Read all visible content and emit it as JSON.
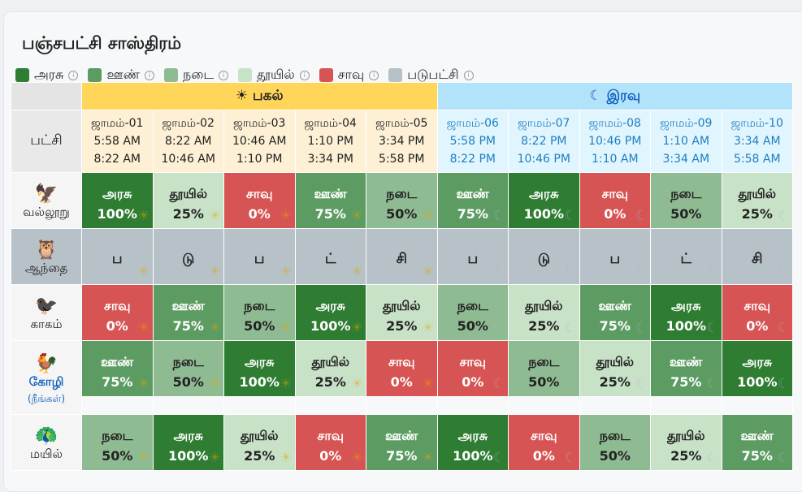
{
  "title": "பஞ்சபட்சி சாஸ்திரம்",
  "legend": [
    {
      "label": "அரசு",
      "color": "#2e7d32"
    },
    {
      "label": "ஊண்",
      "color": "#5c9c63"
    },
    {
      "label": "நடை",
      "color": "#8fbb92"
    },
    {
      "label": "தூயில்",
      "color": "#c8e2c8"
    },
    {
      "label": "சாவு",
      "color": "#d75454"
    },
    {
      "label": "படுபட்சி",
      "color": "#b6c1c8"
    }
  ],
  "header": {
    "day": "☀ பகல்",
    "night": "☾ இரவு",
    "pakshi": "பட்சி"
  },
  "jamams": [
    {
      "name": "ஜாமம்-01",
      "start": "5:58 AM",
      "end": "8:22 AM"
    },
    {
      "name": "ஜாமம்-02",
      "start": "8:22 AM",
      "end": "10:46 AM"
    },
    {
      "name": "ஜாமம்-03",
      "start": "10:46 AM",
      "end": "1:10 PM"
    },
    {
      "name": "ஜாமம்-04",
      "start": "1:10 PM",
      "end": "3:34 PM"
    },
    {
      "name": "ஜாமம்-05",
      "start": "3:34 PM",
      "end": "5:58 PM"
    },
    {
      "name": "ஜாமம்-06",
      "start": "5:58 PM",
      "end": "8:22 PM"
    },
    {
      "name": "ஜாமம்-07",
      "start": "8:22 PM",
      "end": "10:46 PM"
    },
    {
      "name": "ஜாமம்-08",
      "start": "10:46 PM",
      "end": "1:10 AM"
    },
    {
      "name": "ஜாமம்-09",
      "start": "1:10 AM",
      "end": "3:34 AM"
    },
    {
      "name": "ஜாமம்-10",
      "start": "3:34 AM",
      "end": "5:58 AM"
    }
  ],
  "birds": [
    {
      "emoji": "🦅",
      "name": "வல்லூறு",
      "cells": [
        {
          "state": "அரசு",
          "pct": "100%",
          "cls": "arasu"
        },
        {
          "state": "தூயில்",
          "pct": "25%",
          "cls": "thuyil"
        },
        {
          "state": "சாவு",
          "pct": "0%",
          "cls": "saavu"
        },
        {
          "state": "ஊண்",
          "pct": "75%",
          "cls": "oon"
        },
        {
          "state": "நடை",
          "pct": "50%",
          "cls": "nadai"
        },
        {
          "state": "ஊண்",
          "pct": "75%",
          "cls": "oon"
        },
        {
          "state": "அரசு",
          "pct": "100%",
          "cls": "arasu"
        },
        {
          "state": "சாவு",
          "pct": "0%",
          "cls": "saavu"
        },
        {
          "state": "நடை",
          "pct": "50%",
          "cls": "nadai"
        },
        {
          "state": "தூயில்",
          "pct": "25%",
          "cls": "thuyil"
        }
      ]
    },
    {
      "emoji": "🦉",
      "name": "ஆந்தை",
      "padu": true,
      "letters": [
        "ப",
        "டு",
        "ப",
        "ட்",
        "சி",
        "ப",
        "டு",
        "ப",
        "ட்",
        "சி"
      ]
    },
    {
      "emoji": "🐦‍⬛",
      "name": "காகம்",
      "cells": [
        {
          "state": "சாவு",
          "pct": "0%",
          "cls": "saavu"
        },
        {
          "state": "ஊண்",
          "pct": "75%",
          "cls": "oon"
        },
        {
          "state": "நடை",
          "pct": "50%",
          "cls": "nadai"
        },
        {
          "state": "அரசு",
          "pct": "100%",
          "cls": "arasu"
        },
        {
          "state": "தூயில்",
          "pct": "25%",
          "cls": "thuyil"
        },
        {
          "state": "நடை",
          "pct": "50%",
          "cls": "nadai"
        },
        {
          "state": "தூயில்",
          "pct": "25%",
          "cls": "thuyil"
        },
        {
          "state": "ஊண்",
          "pct": "75%",
          "cls": "oon"
        },
        {
          "state": "அரசு",
          "pct": "100%",
          "cls": "arasu"
        },
        {
          "state": "சாவு",
          "pct": "0%",
          "cls": "saavu"
        }
      ]
    },
    {
      "emoji": "🐓",
      "name": "கோழி",
      "sub": "(நீங்கள்)",
      "cells": [
        {
          "state": "ஊண்",
          "pct": "75%",
          "cls": "oon"
        },
        {
          "state": "நடை",
          "pct": "50%",
          "cls": "nadai"
        },
        {
          "state": "அரசு",
          "pct": "100%",
          "cls": "arasu"
        },
        {
          "state": "தூயில்",
          "pct": "25%",
          "cls": "thuyil"
        },
        {
          "state": "சாவு",
          "pct": "0%",
          "cls": "saavu"
        },
        {
          "state": "சாவு",
          "pct": "0%",
          "cls": "saavu"
        },
        {
          "state": "நடை",
          "pct": "50%",
          "cls": "nadai"
        },
        {
          "state": "தூயில்",
          "pct": "25%",
          "cls": "thuyil"
        },
        {
          "state": "ஊண்",
          "pct": "75%",
          "cls": "oon"
        },
        {
          "state": "அரசு",
          "pct": "100%",
          "cls": "arasu"
        }
      ]
    },
    {
      "emoji": "🦚",
      "name": "மயில்",
      "cells": [
        {
          "state": "நடை",
          "pct": "50%",
          "cls": "nadai"
        },
        {
          "state": "அரசு",
          "pct": "100%",
          "cls": "arasu"
        },
        {
          "state": "தூயில்",
          "pct": "25%",
          "cls": "thuyil"
        },
        {
          "state": "சாவு",
          "pct": "0%",
          "cls": "saavu"
        },
        {
          "state": "ஊண்",
          "pct": "75%",
          "cls": "oon"
        },
        {
          "state": "அரசு",
          "pct": "100%",
          "cls": "arasu"
        },
        {
          "state": "சாவு",
          "pct": "0%",
          "cls": "saavu"
        },
        {
          "state": "நடை",
          "pct": "50%",
          "cls": "nadai"
        },
        {
          "state": "தூயில்",
          "pct": "25%",
          "cls": "thuyil"
        },
        {
          "state": "ஊண்",
          "pct": "75%",
          "cls": "oon"
        }
      ]
    }
  ]
}
